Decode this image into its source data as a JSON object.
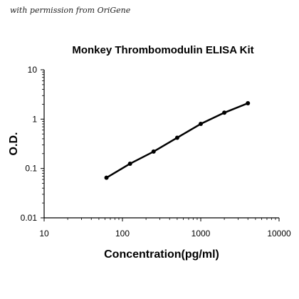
{
  "credit": "with permission from OriGene",
  "chart_data": {
    "type": "line",
    "title": "Monkey Thrombomodulin ELISA Kit",
    "xlabel": "Concentration(pg/ml)",
    "ylabel": "O.D.",
    "xscale": "log",
    "yscale": "log",
    "xlim": [
      10,
      10000
    ],
    "ylim": [
      0.01,
      10
    ],
    "x_ticks": [
      "10",
      "100",
      "1000",
      "10000"
    ],
    "y_ticks": [
      "0.01",
      "0.1",
      "1",
      "10"
    ],
    "grid": false,
    "legend": "none",
    "series": [
      {
        "x": [
          62.5,
          125,
          250,
          500,
          1000,
          2000,
          4000
        ],
        "y": [
          0.065,
          0.125,
          0.22,
          0.42,
          0.8,
          1.35,
          2.1
        ]
      }
    ]
  }
}
